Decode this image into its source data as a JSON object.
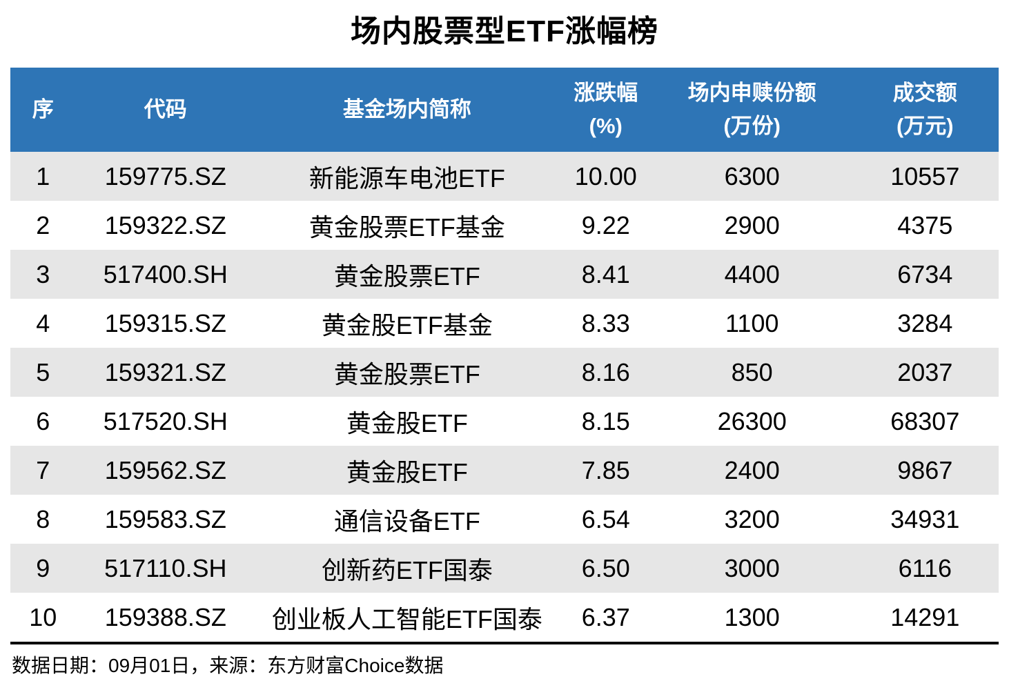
{
  "title": "场内股票型ETF涨幅榜",
  "colors": {
    "header_bg": "#2E75B6",
    "header_text": "#FFFFFF",
    "row_alt_bg": "#E6E6E6",
    "row_bg": "#FFFFFF",
    "text": "#000000"
  },
  "table": {
    "columns": [
      {
        "key": "index",
        "line1": "序",
        "line2": ""
      },
      {
        "key": "code",
        "line1": "代码",
        "line2": ""
      },
      {
        "key": "name",
        "line1": "基金场内简称",
        "line2": ""
      },
      {
        "key": "change",
        "line1": "涨跌幅",
        "line2": "(%)"
      },
      {
        "key": "shares",
        "line1": "场内申赎份额",
        "line2": "(万份)"
      },
      {
        "key": "turnover",
        "line1": "成交额",
        "line2": "(万元)"
      }
    ],
    "rows": [
      [
        "1",
        "159775.SZ",
        "新能源车电池ETF",
        "10.00",
        "6300",
        "10557"
      ],
      [
        "2",
        "159322.SZ",
        "黄金股票ETF基金",
        "9.22",
        "2900",
        "4375"
      ],
      [
        "3",
        "517400.SH",
        "黄金股票ETF",
        "8.41",
        "4400",
        "6734"
      ],
      [
        "4",
        "159315.SZ",
        "黄金股ETF基金",
        "8.33",
        "1100",
        "3284"
      ],
      [
        "5",
        "159321.SZ",
        "黄金股票ETF",
        "8.16",
        "850",
        "2037"
      ],
      [
        "6",
        "517520.SH",
        "黄金股ETF",
        "8.15",
        "26300",
        "68307"
      ],
      [
        "7",
        "159562.SZ",
        "黄金股ETF",
        "7.85",
        "2400",
        "9867"
      ],
      [
        "8",
        "159583.SZ",
        "通信设备ETF",
        "6.54",
        "3200",
        "34931"
      ],
      [
        "9",
        "517110.SH",
        "创新药ETF国泰",
        "6.50",
        "3000",
        "6116"
      ],
      [
        "10",
        "159388.SZ",
        "创业板人工智能ETF国泰",
        "6.37",
        "1300",
        "14291"
      ]
    ]
  },
  "footer": {
    "text": "数据日期：09月01日，来源：东方财富Choice数据"
  },
  "chart_data": {
    "type": "table",
    "title": "场内股票型ETF涨幅榜",
    "columns": [
      "序",
      "代码",
      "基金场内简称",
      "涨跌幅(%)",
      "场内申赎份额(万份)",
      "成交额(万元)"
    ],
    "rows": [
      [
        "1",
        "159775.SZ",
        "新能源车电池ETF",
        10.0,
        6300,
        10557
      ],
      [
        "2",
        "159322.SZ",
        "黄金股票ETF基金",
        9.22,
        2900,
        4375
      ],
      [
        "3",
        "517400.SH",
        "黄金股票ETF",
        8.41,
        4400,
        6734
      ],
      [
        "4",
        "159315.SZ",
        "黄金股ETF基金",
        8.33,
        1100,
        3284
      ],
      [
        "5",
        "159321.SZ",
        "黄金股票ETF",
        8.16,
        850,
        2037
      ],
      [
        "6",
        "517520.SH",
        "黄金股ETF",
        8.15,
        26300,
        68307
      ],
      [
        "7",
        "159562.SZ",
        "黄金股ETF",
        7.85,
        2400,
        9867
      ],
      [
        "8",
        "159583.SZ",
        "通信设备ETF",
        6.54,
        3200,
        34931
      ],
      [
        "9",
        "517110.SH",
        "创新药ETF国泰",
        6.5,
        3000,
        6116
      ],
      [
        "10",
        "159388.SZ",
        "创业板人工智能ETF国泰",
        6.37,
        1300,
        14291
      ]
    ],
    "source_note": "数据日期：09月01日，来源：东方财富Choice数据"
  }
}
